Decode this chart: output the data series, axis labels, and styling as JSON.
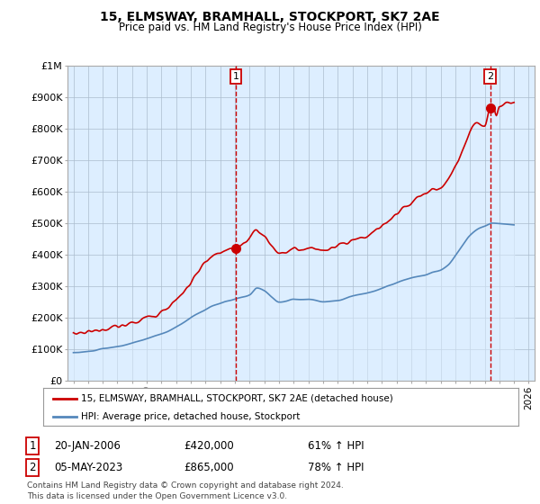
{
  "title": "15, ELMSWAY, BRAMHALL, STOCKPORT, SK7 2AE",
  "subtitle": "Price paid vs. HM Land Registry's House Price Index (HPI)",
  "ylabel_ticks": [
    "£0",
    "£100K",
    "£200K",
    "£300K",
    "£400K",
    "£500K",
    "£600K",
    "£700K",
    "£800K",
    "£900K",
    "£1M"
  ],
  "ytick_values": [
    0,
    100000,
    200000,
    300000,
    400000,
    500000,
    600000,
    700000,
    800000,
    900000,
    1000000
  ],
  "ylim": [
    0,
    1000000
  ],
  "xlim_start": 1994.6,
  "xlim_end": 2026.4,
  "hpi_color": "#5588bb",
  "hpi_fill_color": "#ddeeff",
  "price_color": "#cc0000",
  "chart_bg_color": "#ddeeff",
  "marker1_date": 2006.05,
  "marker1_price": 420000,
  "marker2_date": 2023.37,
  "marker2_price": 865000,
  "legend_label1": "15, ELMSWAY, BRAMHALL, STOCKPORT, SK7 2AE (detached house)",
  "legend_label2": "HPI: Average price, detached house, Stockport",
  "annotation1_date": "20-JAN-2006",
  "annotation1_price": "£420,000",
  "annotation1_hpi": "61% ↑ HPI",
  "annotation2_date": "05-MAY-2023",
  "annotation2_price": "£865,000",
  "annotation2_hpi": "78% ↑ HPI",
  "footer": "Contains HM Land Registry data © Crown copyright and database right 2024.\nThis data is licensed under the Open Government Licence v3.0.",
  "background_color": "#ffffff",
  "grid_color": "#aabbcc"
}
